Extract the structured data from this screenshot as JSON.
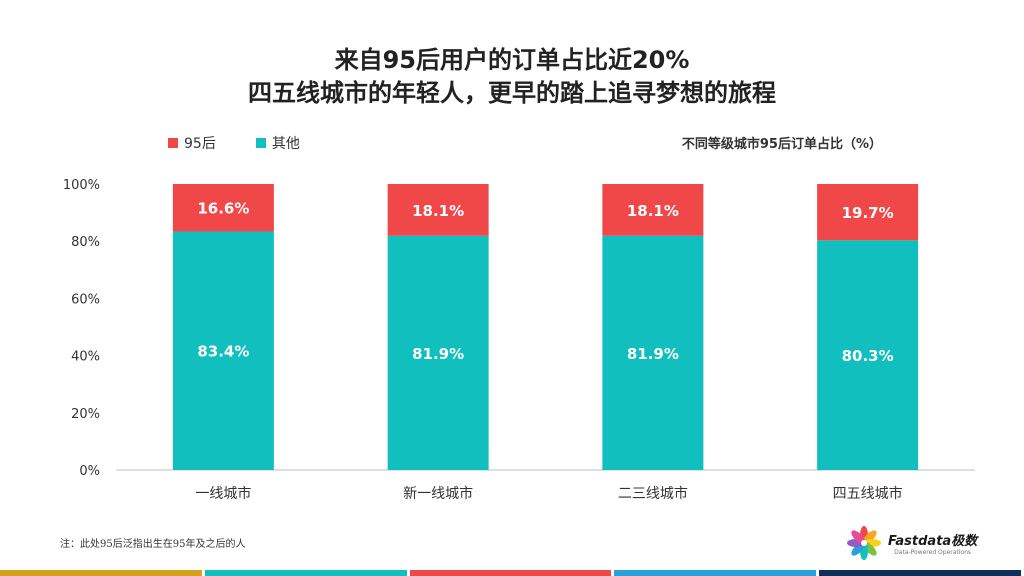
{
  "header": {
    "title_line1": "来自95后用户的订单占比近20%",
    "title_line2": "四五线城市的年轻人，更早的踏上追寻梦想的旅程"
  },
  "legend": {
    "post95": "95后",
    "other": "其他"
  },
  "unit_note": "不同等级城市95后订单占比（%）",
  "chart_data": {
    "type": "bar",
    "stacked": true,
    "percent_stacked": true,
    "categories": [
      "一线城市",
      "新一线城市",
      "二三线城市",
      "四五线城市"
    ],
    "series": [
      {
        "name": "其他",
        "values": [
          83.4,
          81.9,
          81.9,
          80.3
        ],
        "labels": [
          "83.4%",
          "81.9%",
          "81.9%",
          "80.3%"
        ],
        "color": "#12BFBF"
      },
      {
        "name": "95后",
        "values": [
          16.6,
          18.1,
          18.1,
          19.7
        ],
        "labels": [
          "16.6%",
          "18.1%",
          "18.1%",
          "19.7%"
        ],
        "color": "#F04848"
      }
    ],
    "ylim": [
      0,
      100
    ],
    "yticks": [
      "0%",
      "20%",
      "40%",
      "60%",
      "80%",
      "100%"
    ],
    "grid": false
  },
  "footnote": "注：此处95后泛指出生在95年及之后的人",
  "logo": {
    "name": "Fastdata极数",
    "tagline": "Data-Powered Operations"
  },
  "bottom_band_colors": [
    "#D4A21F",
    "#12BFBF",
    "#F04848",
    "#2A9FD8",
    "#0E2F5A"
  ]
}
